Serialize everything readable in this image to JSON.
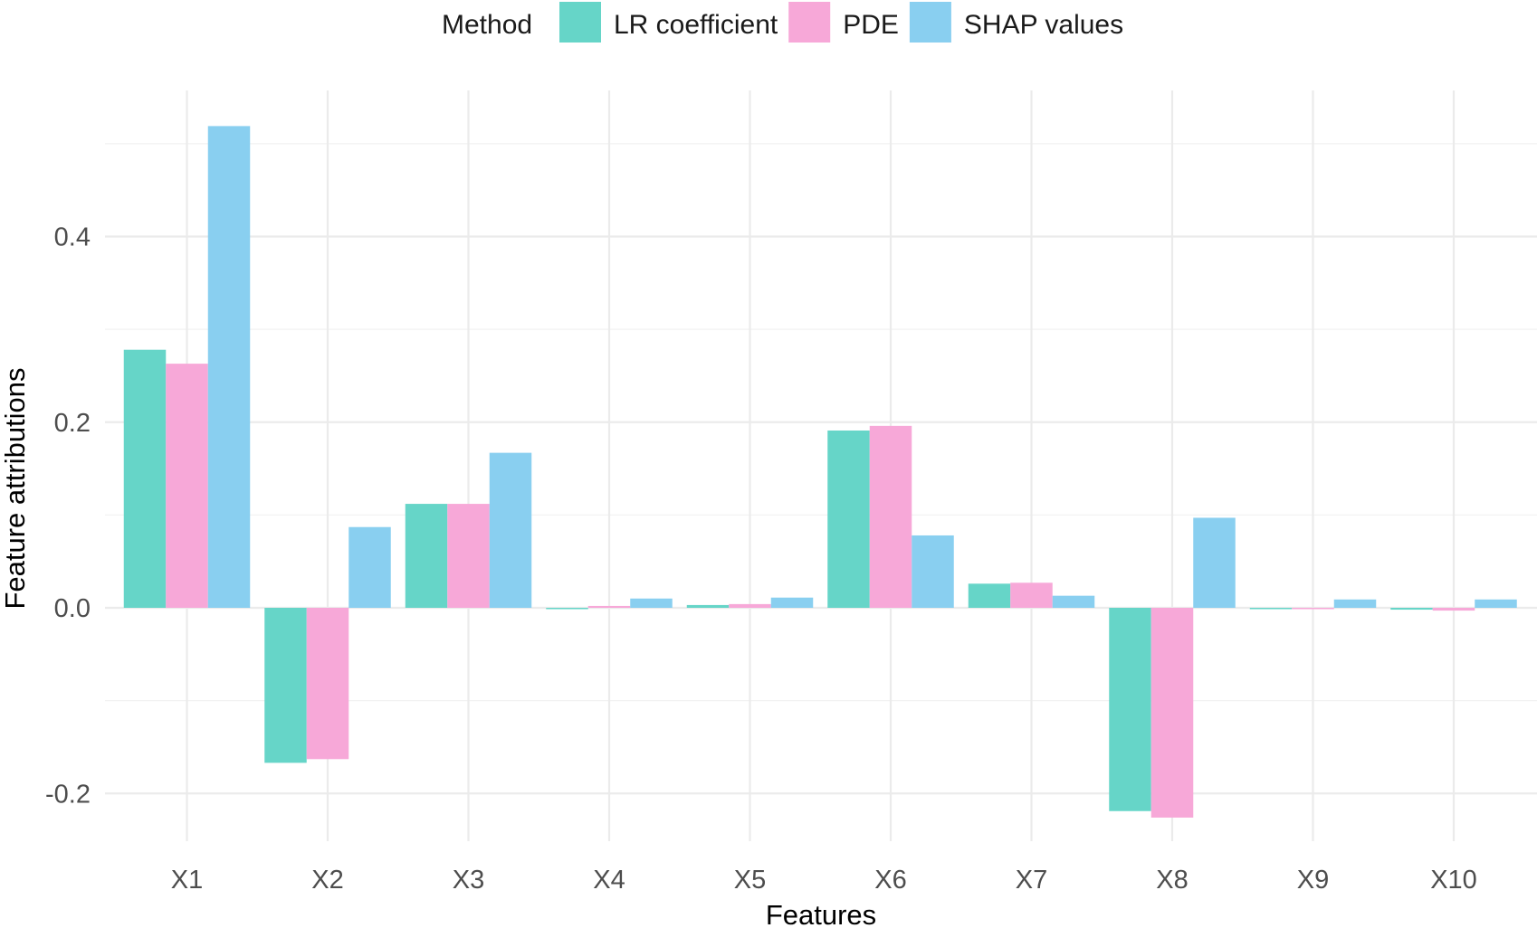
{
  "chart_data": {
    "type": "bar",
    "legend_title": "Method",
    "legend_position": "top",
    "categories": [
      "X1",
      "X2",
      "X3",
      "X4",
      "X5",
      "X6",
      "X7",
      "X8",
      "X9",
      "X10"
    ],
    "series": [
      {
        "name": "LR coefficient",
        "color": "#66D5C8",
        "values": [
          0.278,
          -0.167,
          0.112,
          0.0,
          0.003,
          0.191,
          0.026,
          -0.219,
          -0.001,
          -0.002
        ]
      },
      {
        "name": "PDE",
        "color": "#F7A8D8",
        "values": [
          0.263,
          -0.163,
          0.112,
          0.002,
          0.004,
          0.196,
          0.027,
          -0.226,
          -0.001,
          -0.003
        ]
      },
      {
        "name": "SHAP values",
        "color": "#89CFF0",
        "values": [
          0.519,
          0.087,
          0.167,
          0.01,
          0.011,
          0.078,
          0.013,
          0.097,
          0.009,
          0.009
        ]
      }
    ],
    "xlabel": "Features",
    "ylabel": "Feature attributions",
    "ylim": [
      -0.25,
      0.56
    ],
    "yticks": [
      -0.2,
      0.0,
      0.2,
      0.4
    ],
    "ytick_labels": [
      "-0.2",
      "0.0",
      "0.2",
      "0.4"
    ],
    "grid": true
  }
}
